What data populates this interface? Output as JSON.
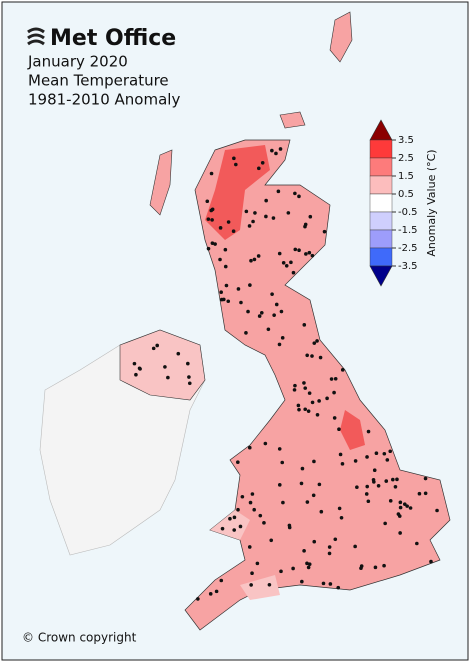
{
  "header": {
    "logo": "Met Office",
    "title_lines": [
      "January 2020",
      "Mean Temperature",
      "1981-2010 Anomaly"
    ]
  },
  "legend": {
    "label": "Anomaly Value (°C)",
    "ticks": [
      3.5,
      2.5,
      1.5,
      0.5,
      -0.5,
      -1.5,
      -2.5,
      -3.5
    ],
    "colors": [
      "#fe3a3a",
      "#fd7b7b",
      "#fcbdbd",
      "#ffffff",
      "#cfcffd",
      "#9d9dfb",
      "#3f6afa"
    ],
    "over_color": "#8b0000",
    "under_color": "#00008b"
  },
  "footer": {
    "copyright": "© Crown copyright"
  }
}
